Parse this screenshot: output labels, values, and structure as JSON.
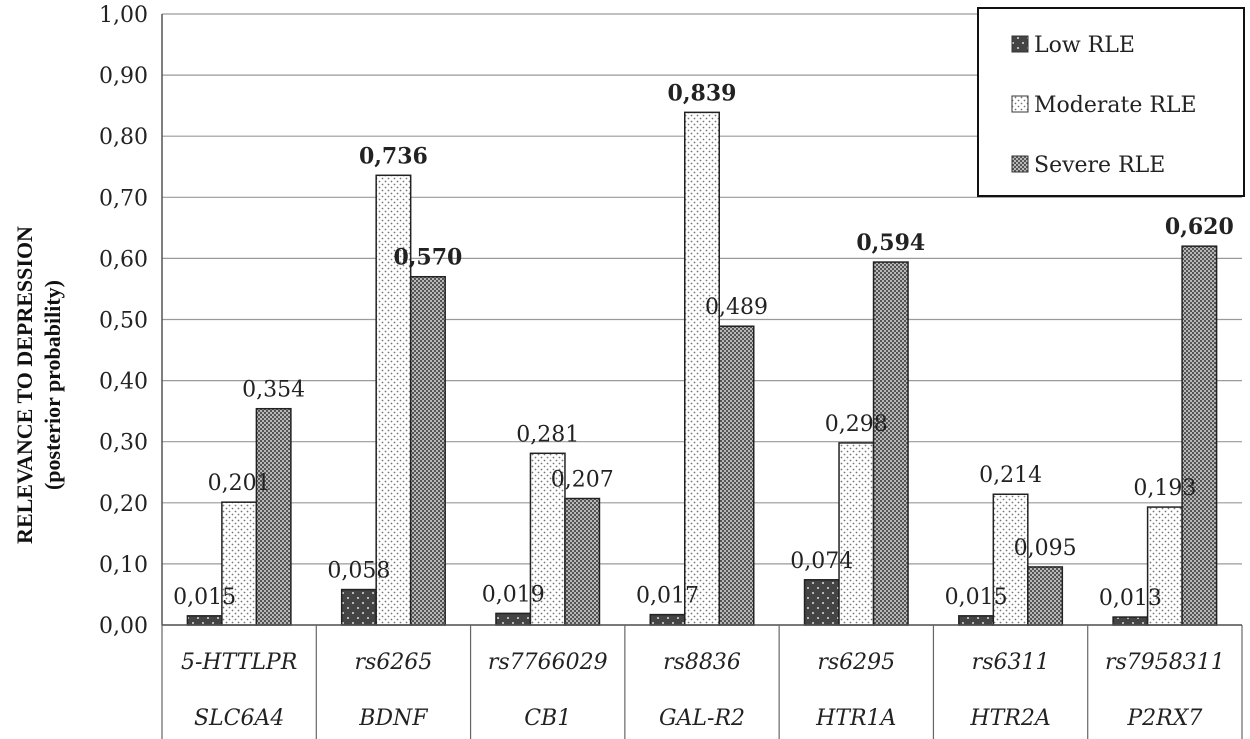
{
  "chart_data": {
    "type": "bar",
    "ylabel_line1": "RELEVANCE TO DEPRESSION",
    "ylabel_line2": "(posterior probability)",
    "ylim": [
      0,
      1
    ],
    "yticks": [
      "0,00",
      "0,10",
      "0,20",
      "0,30",
      "0,40",
      "0,50",
      "0,60",
      "0,70",
      "0,80",
      "0,90",
      "1,00"
    ],
    "grid": true,
    "legend_position": "top-right",
    "categories": [
      {
        "top": "5-HTTLPR",
        "bottom": "SLC6A4"
      },
      {
        "top": "rs6265",
        "bottom": "BDNF"
      },
      {
        "top": "rs7766029",
        "bottom": "CB1"
      },
      {
        "top": "rs8836",
        "bottom": "GAL-R2"
      },
      {
        "top": "rs6295",
        "bottom": "HTR1A"
      },
      {
        "top": "rs6311",
        "bottom": "HTR2A"
      },
      {
        "top": "rs7958311",
        "bottom": "P2RX7"
      }
    ],
    "series": [
      {
        "name": "Low RLE",
        "pattern": "low",
        "values": [
          0.015,
          0.058,
          0.019,
          0.017,
          0.074,
          0.015,
          0.013
        ],
        "labels": [
          "0,015",
          "0,058",
          "0,019",
          "0,017",
          "0,074",
          "0,015",
          "0,013"
        ],
        "bold": [
          false,
          false,
          false,
          false,
          false,
          false,
          false
        ]
      },
      {
        "name": "Moderate RLE",
        "pattern": "moderate",
        "values": [
          0.201,
          0.736,
          0.281,
          0.839,
          0.298,
          0.214,
          0.193
        ],
        "labels": [
          "0,201",
          "0,736",
          "0,281",
          "0,839",
          "0,298",
          "0,214",
          "0,193"
        ],
        "bold": [
          false,
          true,
          false,
          true,
          false,
          false,
          false
        ]
      },
      {
        "name": "Severe RLE",
        "pattern": "severe",
        "values": [
          0.354,
          0.57,
          0.207,
          0.489,
          0.594,
          0.095,
          0.62
        ],
        "labels": [
          "0,354",
          "0,570",
          "0,207",
          "0,489",
          "0,594",
          "0,095",
          "0,620"
        ],
        "bold": [
          false,
          true,
          false,
          false,
          true,
          false,
          true
        ]
      }
    ],
    "colors": {
      "low": "#4a4a4a",
      "moderate": "#ffffff",
      "severe": "#8a8a8a"
    }
  }
}
